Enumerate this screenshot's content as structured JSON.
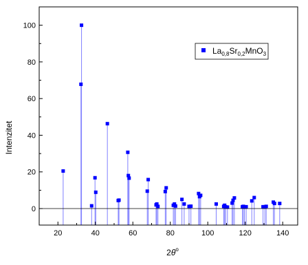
{
  "chart_data": {
    "type": "scatter",
    "style": "stem",
    "xlabel_base": "2",
    "xlabel_theta": "θ",
    "xlabel_sup": "o",
    "ylabel": "Intenzitet",
    "xlim": [
      10,
      148
    ],
    "ylim": [
      -9,
      110
    ],
    "xticks": [
      20,
      40,
      60,
      80,
      100,
      120,
      140
    ],
    "yticks": [
      0,
      20,
      40,
      60,
      80,
      100
    ],
    "grid": false,
    "legend_position": "top-right",
    "color": "#0000ff",
    "stem_color": "#7f7fff",
    "series": [
      {
        "legend_parts": [
          {
            "text": "La",
            "sub": false
          },
          {
            "text": "0,8",
            "sub": true
          },
          {
            "text": "Sr",
            "sub": false
          },
          {
            "text": "0,2",
            "sub": true
          },
          {
            "text": "MnO",
            "sub": false
          },
          {
            "text": "3",
            "sub": true
          }
        ],
        "x": [
          22.8,
          32.3,
          32.6,
          38.0,
          39.8,
          40.2,
          46.4,
          52.2,
          52.6,
          57.3,
          57.6,
          58.0,
          67.7,
          68.2,
          72.4,
          72.8,
          73.4,
          77.3,
          77.8,
          81.6,
          82.2,
          82.8,
          86.2,
          87.4,
          90.0,
          91.0,
          95.1,
          95.6,
          96.2,
          104.5,
          108.5,
          109.0,
          109.5,
          110.5,
          113.0,
          113.5,
          114.2,
          118.5,
          119.0,
          119.6,
          120.5,
          123.5,
          124.8,
          129.5,
          130.5,
          131.2,
          135.0,
          135.6,
          138.4
        ],
        "y": [
          20.5,
          67.8,
          100.0,
          1.5,
          16.8,
          8.9,
          46.3,
          4.4,
          4.6,
          30.7,
          18.0,
          16.6,
          9.5,
          15.8,
          2.0,
          2.5,
          1.2,
          9.3,
          11.3,
          1.8,
          2.5,
          1.4,
          5.0,
          2.5,
          1.2,
          1.3,
          8.2,
          6.5,
          7.2,
          2.5,
          1.2,
          1.8,
          1.0,
          0.8,
          3.0,
          4.5,
          5.8,
          1.0,
          1.2,
          0.9,
          1.0,
          4.2,
          6.0,
          1.0,
          1.0,
          1.2,
          3.5,
          2.8,
          2.8
        ]
      }
    ]
  }
}
